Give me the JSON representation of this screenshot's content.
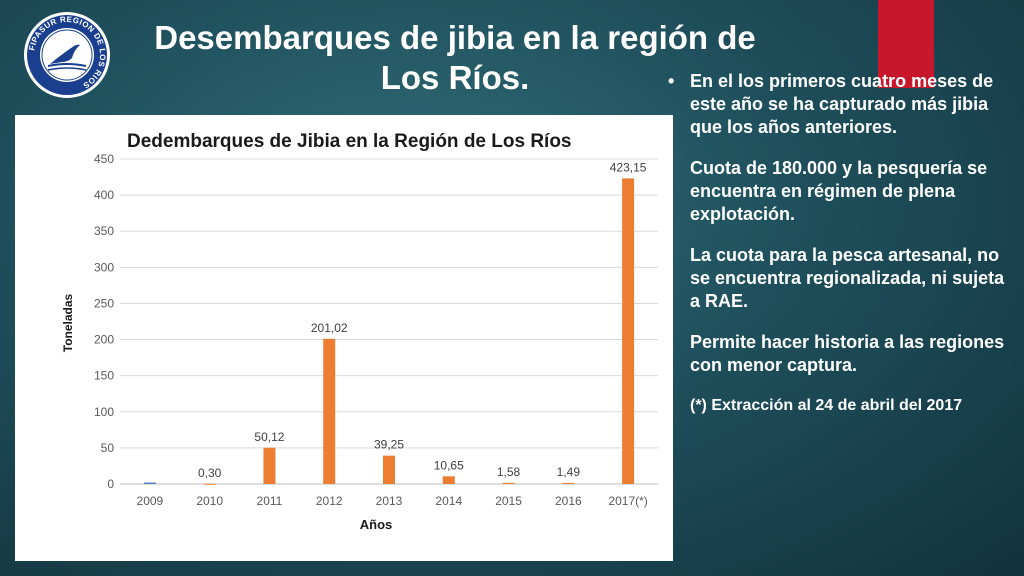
{
  "slide": {
    "title": "Desembarques de jibia en la región de Los Ríos.",
    "logo_text": "FIPASUR REGION DE LOS RIOS",
    "bullet_symbol": "•",
    "paragraphs": [
      "En el los primeros cuatro meses de este año se ha capturado más jibia que los años anteriores.",
      "Cuota de 180.000 y la pesquería se encuentra en régimen de plena explotación.",
      "La cuota para la pesca artesanal, no se encuentra regionalizada, ni sujeta a RAE.",
      "Permite hacer historia a las regiones con menor captura.",
      "(*) Extracción al 24 de abril del 2017"
    ],
    "colors": {
      "accent_red": "#c8162c",
      "logo_blue": "#1a3f8f"
    }
  },
  "chart_data": {
    "type": "bar",
    "title": "Dedembarques de Jibia en la Región de Los Ríos",
    "xlabel": "Años",
    "ylabel": "Toneladas",
    "categories": [
      "2009",
      "2010",
      "2011",
      "2012",
      "2013",
      "2014",
      "2015",
      "2016",
      "2017(*)"
    ],
    "values": [
      2,
      0.3,
      50.12,
      201.02,
      39.25,
      10.65,
      1.58,
      1.49,
      423.15
    ],
    "data_labels": [
      "",
      "0,30",
      "50,12",
      "201,02",
      "39,25",
      "10,65",
      "1,58",
      "1,49",
      "423,15"
    ],
    "bar_colors": [
      "#4f81bd",
      "#ed7d31",
      "#ed7d31",
      "#ed7d31",
      "#ed7d31",
      "#ed7d31",
      "#ed7d31",
      "#ed7d31",
      "#ed7d31"
    ],
    "ylim": [
      0,
      450
    ],
    "yticks": [
      0,
      50,
      100,
      150,
      200,
      250,
      300,
      350,
      400,
      450
    ],
    "grid": true,
    "legend": "none"
  }
}
